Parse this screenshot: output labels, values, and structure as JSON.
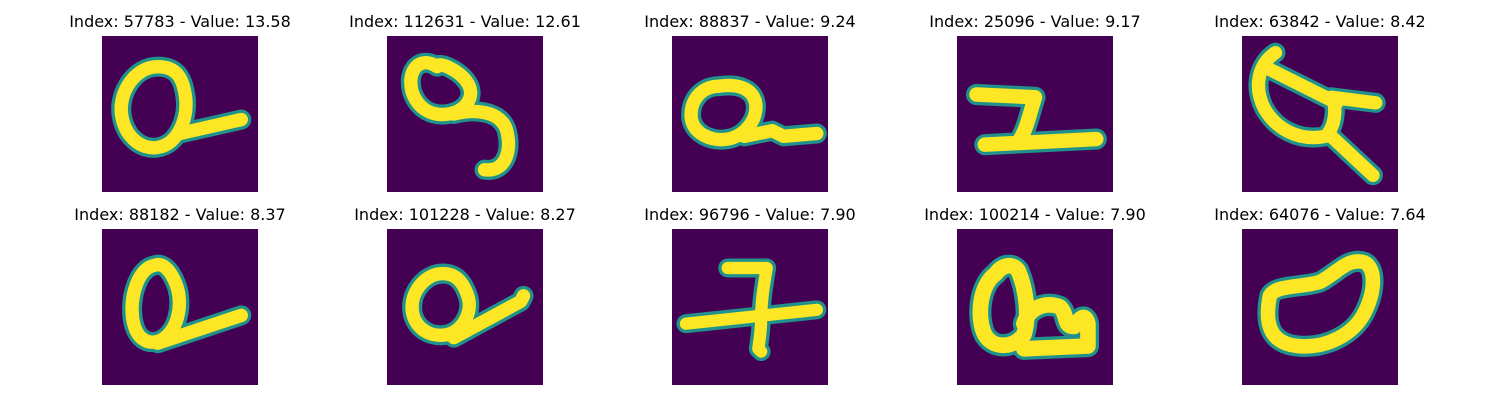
{
  "figure": {
    "panels": [
      {
        "index": "57783",
        "value": "13.58",
        "title": "Index: 57783 - Value: 13.58"
      },
      {
        "index": "112631",
        "value": "12.61",
        "title": "Index: 112631 - Value: 12.61"
      },
      {
        "index": "88837",
        "value": "9.24",
        "title": "Index: 88837 - Value: 9.24"
      },
      {
        "index": "25096",
        "value": "9.17",
        "title": "Index: 25096 - Value: 9.17"
      },
      {
        "index": "63842",
        "value": "8.42",
        "title": "Index: 63842 - Value: 8.42"
      },
      {
        "index": "88182",
        "value": "8.37",
        "title": "Index: 88182 - Value: 8.37"
      },
      {
        "index": "101228",
        "value": "8.27",
        "title": "Index: 101228 - Value: 8.27"
      },
      {
        "index": "96796",
        "value": "7.90",
        "title": "Index: 96796 - Value: 7.90"
      },
      {
        "index": "100214",
        "value": "7.90",
        "title": "Index: 100214 - Value: 7.90"
      },
      {
        "index": "64076",
        "value": "7.64",
        "title": "Index: 64076 - Value: 7.64"
      }
    ]
  },
  "chart_data": {
    "type": "heatmap",
    "layout": "grid 2 rows x 5 columns of 28x28 grayscale digit images",
    "colormap": "viridis",
    "axes": "off",
    "colors": {
      "background": "#440154",
      "mid": "#21918c",
      "stroke": "#fde725"
    },
    "images": [
      {
        "index": 57783,
        "value": 13.58
      },
      {
        "index": 112631,
        "value": 12.61
      },
      {
        "index": 88837,
        "value": 9.24
      },
      {
        "index": 25096,
        "value": 9.17
      },
      {
        "index": 63842,
        "value": 8.42
      },
      {
        "index": 88182,
        "value": 8.37
      },
      {
        "index": 101228,
        "value": 8.27
      },
      {
        "index": 96796,
        "value": 7.9
      },
      {
        "index": 100214,
        "value": 7.9
      },
      {
        "index": 64076,
        "value": 7.64
      }
    ]
  }
}
